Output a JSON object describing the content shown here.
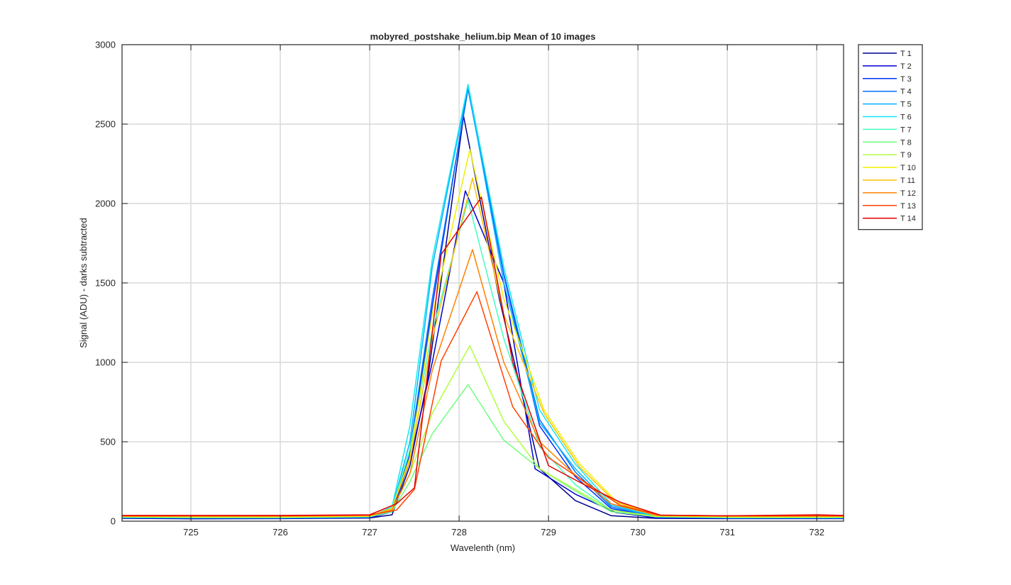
{
  "chart_data": {
    "type": "line",
    "title": "mobyred_postshake_helium.bip  Mean of 10 images",
    "xlabel": "Wavelenth (nm)",
    "ylabel": "Signal (ADU) - darks subtracted",
    "xlim": [
      724.23,
      732.3
    ],
    "ylim": [
      0,
      3000
    ],
    "xticks": [
      725,
      726,
      727,
      728,
      729,
      730,
      731,
      732
    ],
    "yticks": [
      0,
      500,
      1000,
      1500,
      2000,
      2500,
      3000
    ],
    "grid": true,
    "legend_position": "outside-top-right",
    "series": [
      {
        "name": "T 1",
        "color": "#00008f",
        "x": [
          724.23,
          725,
          726,
          727,
          727.25,
          727.45,
          727.65,
          728.05,
          728.45,
          728.9,
          729.3,
          729.7,
          730.2,
          731,
          732,
          732.3
        ],
        "y": [
          18,
          15,
          16,
          20,
          40,
          350,
          900,
          2550,
          1400,
          330,
          130,
          35,
          18,
          16,
          16,
          16
        ]
      },
      {
        "name": "T 2",
        "color": "#0000d0",
        "x": [
          724.23,
          725,
          726,
          727,
          727.25,
          727.45,
          727.7,
          728.07,
          728.5,
          728.85,
          729.3,
          729.75,
          730.2,
          731,
          732,
          732.3
        ],
        "y": [
          20,
          18,
          18,
          22,
          60,
          380,
          1000,
          2080,
          1500,
          330,
          170,
          55,
          22,
          18,
          18,
          18
        ]
      },
      {
        "name": "T 3",
        "color": "#0030ff",
        "x": [
          724.23,
          725,
          726,
          727,
          727.25,
          727.45,
          727.7,
          728.1,
          728.5,
          728.9,
          729.3,
          729.7,
          730.2,
          731,
          732,
          732.3
        ],
        "y": [
          22,
          20,
          20,
          25,
          60,
          420,
          1350,
          2740,
          1550,
          600,
          280,
          80,
          25,
          20,
          20,
          20
        ]
      },
      {
        "name": "T 4",
        "color": "#0070ff",
        "x": [
          724.23,
          725,
          726,
          727,
          727.25,
          727.45,
          727.7,
          728.1,
          728.5,
          728.9,
          729.3,
          729.7,
          730.2,
          731,
          732,
          732.3
        ],
        "y": [
          22,
          20,
          20,
          25,
          70,
          450,
          1400,
          2720,
          1560,
          640,
          310,
          90,
          25,
          20,
          20,
          20
        ]
      },
      {
        "name": "T 5",
        "color": "#00b0ff",
        "x": [
          724.23,
          725,
          726,
          727,
          727.25,
          727.45,
          727.7,
          728.1,
          728.5,
          728.9,
          729.3,
          729.7,
          730.2,
          731,
          732,
          732.3
        ],
        "y": [
          24,
          22,
          22,
          26,
          80,
          500,
          1600,
          2740,
          1500,
          620,
          330,
          100,
          30,
          22,
          22,
          22
        ]
      },
      {
        "name": "T 6",
        "color": "#10e8f0",
        "x": [
          724.23,
          725,
          726,
          727,
          727.25,
          727.45,
          727.7,
          728.1,
          728.5,
          728.9,
          729.3,
          729.7,
          730.2,
          731,
          732,
          732.3
        ],
        "y": [
          24,
          22,
          22,
          28,
          90,
          600,
          1650,
          2750,
          1600,
          700,
          360,
          110,
          30,
          22,
          22,
          22
        ]
      },
      {
        "name": "T 7",
        "color": "#40ffc0",
        "x": [
          724.23,
          725,
          726,
          727,
          727.25,
          727.45,
          727.7,
          728.1,
          728.5,
          728.9,
          729.3,
          729.7,
          730.2,
          731,
          732,
          732.3
        ],
        "y": [
          26,
          24,
          24,
          28,
          80,
          450,
          1200,
          2020,
          1150,
          470,
          230,
          70,
          28,
          24,
          24,
          24
        ]
      },
      {
        "name": "T 8",
        "color": "#70ff80",
        "x": [
          724.23,
          725,
          726,
          727,
          727.25,
          727.45,
          727.7,
          728.1,
          728.5,
          728.9,
          729.3,
          729.7,
          730.2,
          731,
          732,
          732.3
        ],
        "y": [
          26,
          24,
          24,
          28,
          60,
          250,
          550,
          860,
          510,
          330,
          190,
          60,
          28,
          24,
          24,
          24
        ]
      },
      {
        "name": "T 9",
        "color": "#b0ff40",
        "x": [
          724.23,
          725,
          726,
          727,
          727.25,
          727.45,
          727.7,
          728.12,
          728.5,
          728.9,
          729.3,
          729.7,
          730.2,
          731,
          732,
          732.3
        ],
        "y": [
          28,
          26,
          26,
          30,
          70,
          300,
          680,
          1105,
          630,
          330,
          200,
          70,
          30,
          26,
          26,
          26
        ]
      },
      {
        "name": "T 10",
        "color": "#f0f000",
        "x": [
          724.23,
          725,
          726,
          727,
          727.25,
          727.45,
          727.7,
          728.12,
          728.5,
          728.95,
          729.35,
          729.75,
          730.2,
          731,
          732,
          732.3
        ],
        "y": [
          30,
          28,
          28,
          32,
          80,
          400,
          1300,
          2340,
          1400,
          700,
          360,
          130,
          35,
          28,
          28,
          28
        ]
      },
      {
        "name": "T 11",
        "color": "#ffc000",
        "x": [
          724.23,
          725,
          726,
          727,
          727.25,
          727.45,
          727.7,
          728.15,
          728.5,
          728.95,
          729.35,
          729.75,
          730.2,
          731,
          732,
          732.3
        ],
        "y": [
          30,
          30,
          30,
          34,
          80,
          380,
          1150,
          2160,
          1300,
          680,
          340,
          120,
          35,
          30,
          30,
          30
        ]
      },
      {
        "name": "T 12",
        "color": "#ff8000",
        "x": [
          724.23,
          725,
          726,
          727,
          727.25,
          727.45,
          727.7,
          728.15,
          728.5,
          728.9,
          729.3,
          729.7,
          730.2,
          731,
          732,
          732.3
        ],
        "y": [
          32,
          32,
          32,
          36,
          70,
          300,
          950,
          1710,
          1000,
          500,
          290,
          110,
          38,
          32,
          32,
          32
        ]
      },
      {
        "name": "T 13",
        "color": "#ff4000",
        "x": [
          724.23,
          725,
          726,
          727,
          727.3,
          727.5,
          727.8,
          728.2,
          728.6,
          729,
          729.4,
          729.8,
          730.25,
          731,
          732,
          732.3
        ],
        "y": [
          34,
          34,
          34,
          38,
          70,
          200,
          1010,
          1445,
          720,
          400,
          250,
          100,
          38,
          34,
          34,
          34
        ]
      },
      {
        "name": "T 14",
        "color": "#e00000",
        "x": [
          724.23,
          725,
          726,
          727,
          727.3,
          727.5,
          727.8,
          728.25,
          728.6,
          729,
          729.4,
          729.8,
          730.25,
          731,
          732,
          732.3
        ],
        "y": [
          36,
          36,
          36,
          40,
          110,
          210,
          1680,
          2040,
          1000,
          350,
          230,
          120,
          38,
          34,
          40,
          36
        ]
      }
    ]
  }
}
